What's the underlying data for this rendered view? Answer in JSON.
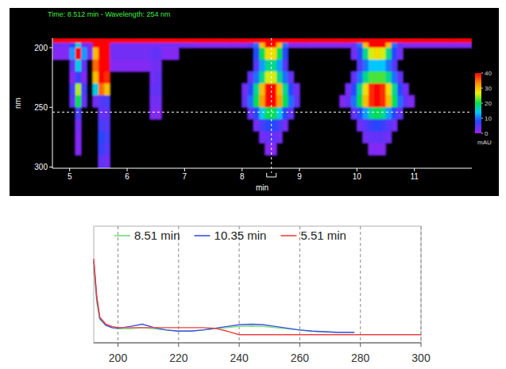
{
  "chart_data": [
    {
      "type": "heatmap",
      "title": "Time: 8.512 min - Wavelength: 254 nm",
      "x_label": "min",
      "y_label": "nm",
      "xlim": [
        4.7,
        12.0
      ],
      "xticks": [
        5,
        6,
        7,
        8,
        9,
        10,
        11
      ],
      "ylim": [
        301,
        192
      ],
      "yticks": [
        200,
        250,
        300
      ],
      "x_bins": [
        4.7,
        4.8,
        4.9,
        5.0,
        5.1,
        5.2,
        5.3,
        5.4,
        5.5,
        5.6,
        5.7,
        5.8,
        5.9,
        6.0,
        6.1,
        6.2,
        6.3,
        6.4,
        6.5,
        6.6,
        6.7,
        6.8,
        6.9,
        7.0,
        7.1,
        7.2,
        7.3,
        7.4,
        7.5,
        7.6,
        7.7,
        7.8,
        7.9,
        8.0,
        8.1,
        8.2,
        8.3,
        8.4,
        8.5,
        8.6,
        8.7,
        8.8,
        8.9,
        9.0,
        9.1,
        9.2,
        9.3,
        9.4,
        9.5,
        9.6,
        9.7,
        9.8,
        9.9,
        10.0,
        10.1,
        10.2,
        10.3,
        10.4,
        10.5,
        10.6,
        10.7,
        10.8,
        10.9,
        11.0,
        11.1,
        11.2,
        11.3,
        11.4,
        11.5,
        11.6,
        11.7,
        11.8,
        11.9,
        12.0
      ],
      "y_bins": [
        192,
        196,
        200,
        210,
        220,
        230,
        240,
        250,
        260,
        270,
        280,
        290,
        301
      ],
      "values": [
        [
          40,
          40,
          40,
          40,
          40,
          40,
          40,
          40,
          40,
          40,
          40,
          40,
          40,
          40,
          40,
          40,
          40,
          40,
          40,
          40,
          40,
          40,
          40,
          40,
          40,
          40,
          40,
          40,
          40,
          40,
          40,
          40,
          40,
          40,
          40,
          40,
          40,
          40,
          40,
          40,
          40,
          40,
          40,
          40,
          40,
          40,
          40,
          40,
          40,
          40,
          40,
          40,
          40,
          40,
          40,
          40,
          40,
          40,
          40,
          40,
          40,
          40,
          40,
          40,
          40,
          40,
          40,
          40,
          40,
          40,
          40,
          40,
          40
        ],
        [
          3,
          3,
          3,
          8,
          15,
          3,
          3,
          40,
          40,
          40,
          3,
          3,
          3,
          3,
          3,
          3,
          3,
          3,
          3,
          3,
          3,
          3,
          3,
          3,
          3,
          2,
          2,
          2,
          2,
          2,
          2,
          2,
          2,
          2,
          4,
          10,
          30,
          40,
          40,
          30,
          10,
          2,
          2,
          2,
          2,
          2,
          2,
          2,
          2,
          2,
          2,
          2,
          4,
          10,
          30,
          40,
          40,
          40,
          30,
          10,
          4,
          2,
          2,
          2,
          2,
          2,
          2,
          2,
          2,
          2,
          2,
          2,
          2
        ],
        [
          2,
          2,
          2,
          12,
          40,
          12,
          3,
          30,
          40,
          40,
          3,
          3,
          3,
          3,
          3,
          3,
          3,
          4,
          4,
          2,
          2,
          2,
          0,
          0,
          0,
          0,
          0,
          0,
          0,
          0,
          0,
          0,
          0,
          0,
          0,
          8,
          20,
          28,
          28,
          20,
          8,
          0,
          0,
          0,
          0,
          0,
          0,
          0,
          0,
          0,
          0,
          0,
          3,
          8,
          18,
          26,
          28,
          26,
          18,
          8,
          3,
          0,
          0,
          0,
          0,
          0,
          0,
          0,
          0,
          0,
          0,
          0,
          0
        ],
        [
          0,
          0,
          0,
          4,
          15,
          4,
          0,
          35,
          40,
          40,
          2,
          2,
          2,
          2,
          2,
          2,
          2,
          3,
          3,
          0,
          0,
          0,
          0,
          0,
          0,
          0,
          0,
          0,
          0,
          0,
          0,
          0,
          0,
          0,
          0,
          5,
          12,
          18,
          18,
          12,
          5,
          0,
          0,
          0,
          0,
          0,
          0,
          0,
          0,
          0,
          0,
          0,
          0,
          5,
          10,
          14,
          14,
          14,
          10,
          5,
          0,
          0,
          0,
          0,
          0,
          0,
          0,
          0,
          0,
          0,
          0,
          0,
          0
        ],
        [
          0,
          0,
          0,
          2,
          7,
          2,
          0,
          30,
          40,
          38,
          0,
          0,
          0,
          0,
          0,
          0,
          0,
          3,
          4,
          0,
          0,
          0,
          0,
          0,
          0,
          0,
          0,
          0,
          0,
          0,
          0,
          0,
          0,
          0,
          4,
          10,
          18,
          26,
          26,
          18,
          10,
          4,
          0,
          0,
          0,
          0,
          0,
          0,
          0,
          0,
          0,
          0,
          4,
          10,
          18,
          22,
          22,
          22,
          18,
          10,
          4,
          0,
          0,
          0,
          0,
          0,
          0,
          0,
          0,
          0,
          0,
          0,
          0
        ],
        [
          0,
          0,
          0,
          6,
          25,
          6,
          0,
          15,
          35,
          30,
          0,
          0,
          0,
          0,
          0,
          0,
          0,
          4,
          4,
          0,
          0,
          0,
          0,
          0,
          0,
          0,
          0,
          0,
          0,
          0,
          0,
          0,
          0,
          3,
          8,
          18,
          30,
          40,
          40,
          30,
          18,
          8,
          3,
          0,
          0,
          0,
          0,
          0,
          0,
          0,
          0,
          3,
          8,
          18,
          28,
          38,
          40,
          38,
          28,
          18,
          8,
          3,
          0,
          0,
          0,
          0,
          0,
          0,
          0,
          0,
          0,
          0,
          0
        ],
        [
          0,
          0,
          0,
          4,
          20,
          4,
          0,
          3,
          5,
          6,
          0,
          0,
          0,
          0,
          0,
          0,
          0,
          3,
          3,
          0,
          0,
          0,
          0,
          0,
          0,
          0,
          0,
          0,
          0,
          0,
          0,
          0,
          0,
          4,
          10,
          20,
          32,
          40,
          40,
          32,
          20,
          10,
          4,
          0,
          0,
          0,
          0,
          0,
          0,
          0,
          2,
          4,
          10,
          20,
          30,
          38,
          40,
          38,
          30,
          20,
          10,
          4,
          2,
          0,
          0,
          0,
          0,
          0,
          0,
          0,
          0,
          0,
          0
        ],
        [
          0,
          0,
          0,
          0,
          6,
          0,
          0,
          0,
          4,
          4,
          0,
          0,
          0,
          0,
          0,
          0,
          0,
          2,
          2,
          0,
          0,
          0,
          0,
          0,
          0,
          0,
          0,
          0,
          0,
          0,
          0,
          0,
          0,
          0,
          4,
          8,
          15,
          20,
          20,
          15,
          8,
          4,
          0,
          0,
          0,
          0,
          0,
          0,
          0,
          0,
          0,
          0,
          4,
          8,
          12,
          18,
          20,
          18,
          12,
          8,
          4,
          0,
          0,
          0,
          0,
          0,
          0,
          0,
          0,
          0,
          0,
          0,
          0
        ],
        [
          0,
          0,
          0,
          0,
          3,
          0,
          0,
          0,
          6,
          5,
          0,
          0,
          0,
          0,
          0,
          0,
          0,
          0,
          0,
          0,
          0,
          0,
          0,
          0,
          0,
          0,
          0,
          0,
          0,
          0,
          0,
          0,
          0,
          0,
          0,
          3,
          6,
          8,
          8,
          6,
          3,
          0,
          0,
          0,
          0,
          0,
          0,
          0,
          0,
          0,
          0,
          0,
          0,
          3,
          5,
          7,
          8,
          7,
          5,
          3,
          0,
          0,
          0,
          0,
          0,
          0,
          0,
          0,
          0,
          0,
          0,
          0,
          0
        ],
        [
          0,
          0,
          0,
          0,
          2,
          0,
          0,
          0,
          8,
          6,
          0,
          0,
          0,
          0,
          0,
          0,
          0,
          0,
          0,
          0,
          0,
          0,
          0,
          0,
          0,
          0,
          0,
          0,
          0,
          0,
          0,
          0,
          0,
          0,
          0,
          0,
          3,
          4,
          4,
          3,
          0,
          0,
          0,
          0,
          0,
          0,
          0,
          0,
          0,
          0,
          0,
          0,
          0,
          0,
          3,
          4,
          4,
          4,
          3,
          0,
          0,
          0,
          0,
          0,
          0,
          0,
          0,
          0,
          0,
          0,
          0,
          0,
          0
        ],
        [
          0,
          0,
          0,
          0,
          2,
          0,
          0,
          0,
          7,
          5,
          0,
          0,
          0,
          0,
          0,
          0,
          0,
          0,
          0,
          0,
          0,
          0,
          0,
          0,
          0,
          0,
          0,
          0,
          0,
          0,
          0,
          0,
          0,
          0,
          0,
          0,
          0,
          2,
          2,
          0,
          0,
          0,
          0,
          0,
          0,
          0,
          0,
          0,
          0,
          0,
          0,
          0,
          0,
          0,
          0,
          2,
          2,
          2,
          0,
          0,
          0,
          0,
          0,
          0,
          0,
          0,
          0,
          0,
          0,
          0,
          0,
          0,
          0
        ],
        [
          0,
          0,
          0,
          0,
          0,
          0,
          0,
          0,
          4,
          3,
          0,
          0,
          0,
          0,
          0,
          0,
          0,
          0,
          0,
          0,
          0,
          0,
          0,
          0,
          0,
          0,
          0,
          0,
          0,
          0,
          0,
          0,
          0,
          0,
          0,
          0,
          0,
          0,
          0,
          0,
          0,
          0,
          0,
          0,
          0,
          0,
          0,
          0,
          0,
          0,
          0,
          0,
          0,
          0,
          0,
          0,
          0,
          0,
          0,
          0,
          0,
          0,
          0,
          0,
          0,
          0,
          0,
          0,
          0,
          0,
          0,
          0,
          0
        ]
      ],
      "colorbar": {
        "range": [
          0,
          40
        ],
        "ticks": [
          0,
          10,
          20,
          30,
          40
        ],
        "label": "mAU"
      },
      "cursor": {
        "x": 8.512,
        "y": 254
      }
    },
    {
      "type": "line",
      "xlim": [
        192,
        300
      ],
      "xticks": [
        200,
        220,
        240,
        260,
        280,
        300
      ],
      "ylim": [
        0,
        100
      ],
      "tick_labels": "x",
      "grid": true,
      "legend": "top",
      "x": [
        192,
        193,
        194,
        196,
        198,
        200,
        204,
        208,
        212,
        216,
        220,
        224,
        228,
        232,
        236,
        240,
        244,
        248,
        252,
        256,
        260,
        264,
        268,
        272,
        276,
        278,
        280,
        290,
        300
      ],
      "series": [
        {
          "name": "8.51 min",
          "color": "#6fe06f",
          "values": [
            65,
            35,
            20,
            15,
            13,
            12,
            12,
            13,
            12,
            11,
            10,
            10,
            11,
            12,
            13,
            14,
            14.5,
            14,
            13,
            12,
            11,
            10,
            9.5,
            9,
            9,
            9,
            null,
            null,
            null
          ]
        },
        {
          "name": "10.35 min",
          "color": "#3f4fe8",
          "values": [
            70,
            38,
            21,
            15,
            13,
            12.5,
            14,
            16,
            13,
            11,
            10,
            10,
            11,
            12.5,
            14,
            15.5,
            16,
            15.5,
            14,
            12.5,
            11,
            10,
            9.5,
            9,
            9,
            9,
            null,
            null,
            null
          ]
        },
        {
          "name": "5.51 min",
          "color": "#ee4040",
          "values": [
            72,
            40,
            22,
            16,
            14,
            13,
            13,
            13,
            13,
            13,
            13,
            13,
            13,
            12.5,
            10,
            7,
            7,
            7,
            7,
            7,
            7,
            7,
            7,
            7,
            7,
            7,
            7,
            7,
            7
          ]
        }
      ]
    }
  ]
}
